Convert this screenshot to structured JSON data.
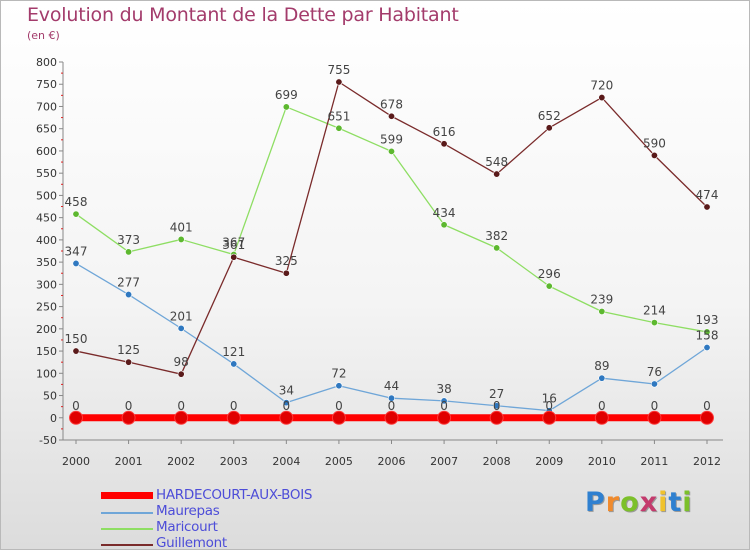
{
  "header": {
    "title": "Evolution du Montant de la Dette par Habitant",
    "subtitle": "(en €)"
  },
  "brand": {
    "logo_text": "Proxiti",
    "letter_colors": [
      "#2f80d0",
      "#f08a2c",
      "#7cc02a",
      "#c43a6d",
      "#f0c22c",
      "#2f80d0",
      "#7cc02a"
    ]
  },
  "colors": {
    "axis": "#888888",
    "grid": "#e2e2e2",
    "tick_text": "#333333",
    "value_text": "#444444"
  },
  "chart_data": {
    "type": "line",
    "title": "Evolution du Montant de la Dette par Habitant",
    "ylabel": "(en €)",
    "xlabel": "",
    "x": [
      "2000",
      "2001",
      "2002",
      "2003",
      "2004",
      "2005",
      "2006",
      "2007",
      "2008",
      "2009",
      "2010",
      "2011",
      "2012"
    ],
    "ylim": [
      -50,
      800
    ],
    "yticks": [
      -50,
      0,
      50,
      100,
      150,
      200,
      250,
      300,
      350,
      400,
      450,
      500,
      550,
      600,
      650,
      700,
      750,
      800
    ],
    "grid": false,
    "legend_position": "bottom-left",
    "series": [
      {
        "name": "HARDECOURT-AUX-BOIS",
        "color": "#ff0000",
        "point_color": "#e00000",
        "values": [
          0,
          0,
          0,
          0,
          0,
          0,
          0,
          0,
          0,
          0,
          0,
          0,
          0
        ],
        "labels": [
          "0",
          "0",
          "0",
          "0",
          "0",
          "0",
          "0",
          "0",
          "0",
          "0",
          "0",
          "0",
          "0"
        ]
      },
      {
        "name": "Maurepas",
        "color": "#6fa6d8",
        "point_color": "#2f78c0",
        "values": [
          347,
          277,
          201,
          121,
          34,
          72,
          44,
          38,
          27,
          16,
          89,
          76,
          158
        ],
        "labels": [
          "347",
          "277",
          "201",
          "121",
          "34",
          "72",
          "44",
          "38",
          "27",
          "16",
          "89",
          "76",
          "158"
        ]
      },
      {
        "name": "Maricourt",
        "color": "#8ede63",
        "point_color": "#5db82f",
        "values": [
          458,
          373,
          401,
          367,
          699,
          651,
          599,
          434,
          382,
          296,
          239,
          214,
          193
        ],
        "labels": [
          "458",
          "373",
          "401",
          "367",
          "699",
          "651",
          "599",
          "434",
          "382",
          "296",
          "239",
          "214",
          "193"
        ]
      },
      {
        "name": "Guillemont",
        "color": "#7a2b2b",
        "point_color": "#5a1a1a",
        "values": [
          150,
          125,
          98,
          361,
          325,
          755,
          678,
          616,
          548,
          652,
          720,
          590,
          474
        ],
        "labels": [
          "150",
          "125",
          "98",
          "361",
          "325",
          "755",
          "678",
          "616",
          "548",
          "652",
          "720",
          "590",
          "474"
        ]
      }
    ]
  }
}
